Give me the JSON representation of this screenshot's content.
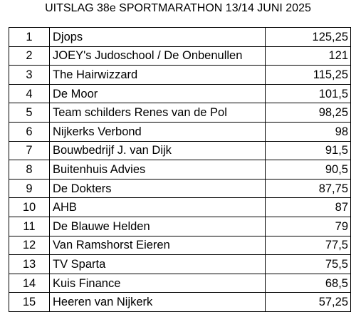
{
  "title": "UITSLAG 38e SPORTMARATHON 13/14 JUNI 2025",
  "results": [
    {
      "rank": "1",
      "team": "Djops",
      "score": "125,25"
    },
    {
      "rank": "2",
      "team": "JOEY's Judoschool / De Onbenullen",
      "score": "121"
    },
    {
      "rank": "3",
      "team": "The Hairwizzard",
      "score": "115,25"
    },
    {
      "rank": "4",
      "team": "De Moor",
      "score": "101,5"
    },
    {
      "rank": "5",
      "team": "Team schilders Renes van de Pol",
      "score": "98,25"
    },
    {
      "rank": "6",
      "team": "Nijkerks Verbond",
      "score": "98"
    },
    {
      "rank": "7",
      "team": "Bouwbedrijf J. van Dijk",
      "score": "91,5"
    },
    {
      "rank": "8",
      "team": "Buitenhuis Advies",
      "score": "90,5"
    },
    {
      "rank": "9",
      "team": "De Dokters",
      "score": "87,75"
    },
    {
      "rank": "10",
      "team": "AHB",
      "score": "87"
    },
    {
      "rank": "11",
      "team": "De Blauwe Helden",
      "score": "79"
    },
    {
      "rank": "12",
      "team": "Van Ramshorst Eieren",
      "score": "77,5"
    },
    {
      "rank": "13",
      "team": "TV Sparta",
      "score": "75,5"
    },
    {
      "rank": "14",
      "team": "Kuis Finance",
      "score": "68,5"
    },
    {
      "rank": "15",
      "team": "Heeren van Nijkerk",
      "score": "57,25"
    }
  ]
}
